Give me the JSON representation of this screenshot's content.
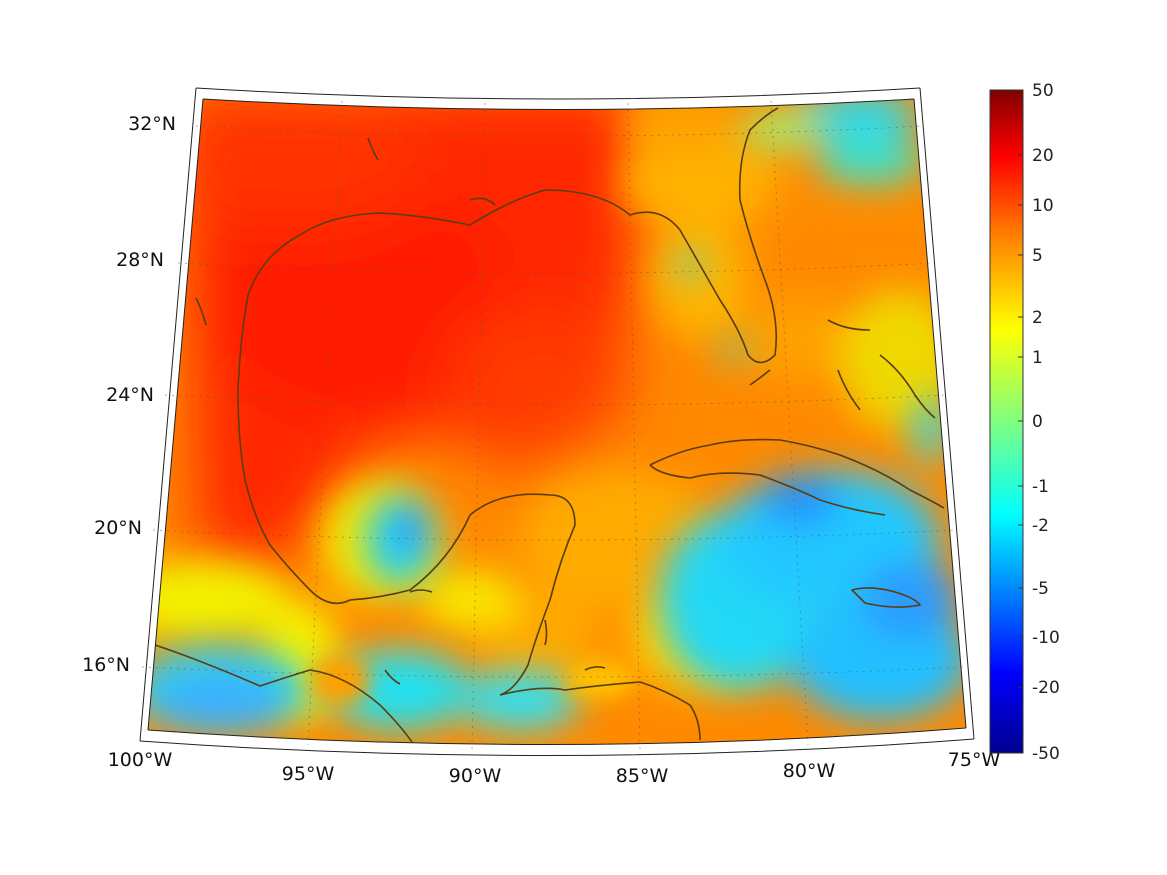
{
  "map": {
    "lat_labels": [
      "32°N",
      "28°N",
      "24°N",
      "20°N",
      "16°N"
    ],
    "lon_labels": [
      "100°W",
      "95°W",
      "90°W",
      "85°W",
      "80°W",
      "75°W"
    ],
    "extent": {
      "lon_min": -100,
      "lon_max": -75,
      "lat_min": 14,
      "lat_max": 33
    },
    "coastline_color": "#5a3d12",
    "grid": "dotted"
  },
  "colorbar": {
    "ticks": [
      "50",
      "20",
      "10",
      "5",
      "2",
      "1",
      "0",
      "-1",
      "-2",
      "-5",
      "-10",
      "-20",
      "-50"
    ],
    "range": [
      -50,
      50
    ],
    "colormap": "jet",
    "colors": [
      "#00008f",
      "#0000ff",
      "#00ffff",
      "#80ff80",
      "#ffff00",
      "#ff8000",
      "#ff0000",
      "#800000"
    ]
  },
  "field": {
    "colors": {
      "gulf": "#ff2a00",
      "orange": "#ff8800",
      "amber": "#ffb000",
      "yellow": "#f5f000",
      "cyan": "#1ee0f5",
      "blue": "#2090ff"
    }
  }
}
